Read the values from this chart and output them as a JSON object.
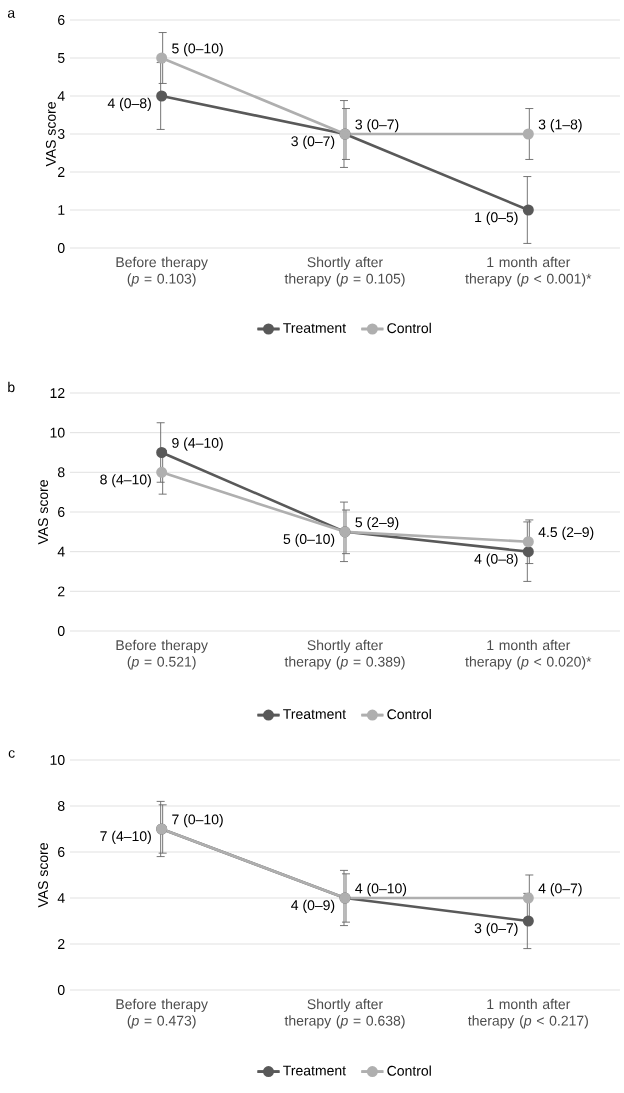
{
  "chart_data": [
    {
      "type": "line",
      "title": "a",
      "ylabel": "VAS score",
      "categories": [
        "Before therapy (*p* = 0.103)",
        "Shortly after therapy (*p* = 0.105)",
        "1 month after therapy (*p* < 0.001)*"
      ],
      "ylim": [
        0,
        6
      ],
      "yticks": [
        0,
        1,
        2,
        3,
        4,
        5,
        6
      ],
      "grid": "y",
      "legend": "bottom",
      "marker": "circle",
      "line_style": "solid",
      "series": [
        {
          "name": "Treatment",
          "color": "#595959",
          "values": [
            4,
            3,
            1
          ],
          "errors": [
            0.88,
            0.88,
            0.88
          ],
          "value_labels": [
            "4 (0–8)",
            "3 (0–7)",
            "1 (0–5)"
          ]
        },
        {
          "name": "Control",
          "color": "#afafaf",
          "values": [
            5,
            3,
            3
          ],
          "errors": [
            0.67,
            0.67,
            0.67
          ],
          "value_labels": [
            "5 (0–10)",
            "3 (0–7)",
            "3 (1–8)"
          ]
        }
      ]
    },
    {
      "type": "line",
      "title": "b",
      "ylabel": "VAS score",
      "categories": [
        "Before therapy (*p* = 0.521)",
        "Shortly after therapy (*p* = 0.389)",
        "1 month after therapy (*p* < 0.020)*"
      ],
      "ylim": [
        0,
        12
      ],
      "yticks": [
        0,
        2,
        4,
        6,
        8,
        10,
        12
      ],
      "grid": "y",
      "legend": "bottom",
      "marker": "circle",
      "line_style": "solid",
      "series": [
        {
          "name": "Treatment",
          "color": "#595959",
          "values": [
            9,
            5,
            4
          ],
          "errors": [
            1.5,
            1.5,
            1.5
          ],
          "value_labels": [
            "9 (4–10)",
            "5 (0–10)",
            "4 (0–8)"
          ]
        },
        {
          "name": "Control",
          "color": "#afafaf",
          "values": [
            8,
            5,
            4.5
          ],
          "errors": [
            1.1,
            1.1,
            1.1
          ],
          "value_labels": [
            "8 (4–10)",
            "5 (2–9)",
            "4.5 (2–9)"
          ]
        }
      ]
    },
    {
      "type": "line",
      "title": "c",
      "ylabel": "VAS score",
      "categories": [
        "Before therapy (*p* = 0.473)",
        "Shortly after therapy (*p* = 0.638)",
        "1 month after therapy (*p* < 0.217)"
      ],
      "ylim": [
        0,
        10
      ],
      "yticks": [
        0,
        2,
        4,
        6,
        8,
        10
      ],
      "grid": "y",
      "legend": "bottom",
      "marker": "circle",
      "line_style": "solid",
      "series": [
        {
          "name": "Treatment",
          "color": "#595959",
          "values": [
            7,
            4,
            3
          ],
          "errors": [
            1.2,
            1.2,
            1.2
          ],
          "value_labels": [
            "7 (4–10)",
            "4 (0–9)",
            "3 (0–7)"
          ]
        },
        {
          "name": "Control",
          "color": "#afafaf",
          "values": [
            7,
            4,
            4
          ],
          "errors": [
            1.05,
            1.05,
            1.0
          ],
          "value_labels": [
            "7 (0–10)",
            "4 (0–10)",
            "4 (0–7)"
          ]
        }
      ]
    }
  ]
}
